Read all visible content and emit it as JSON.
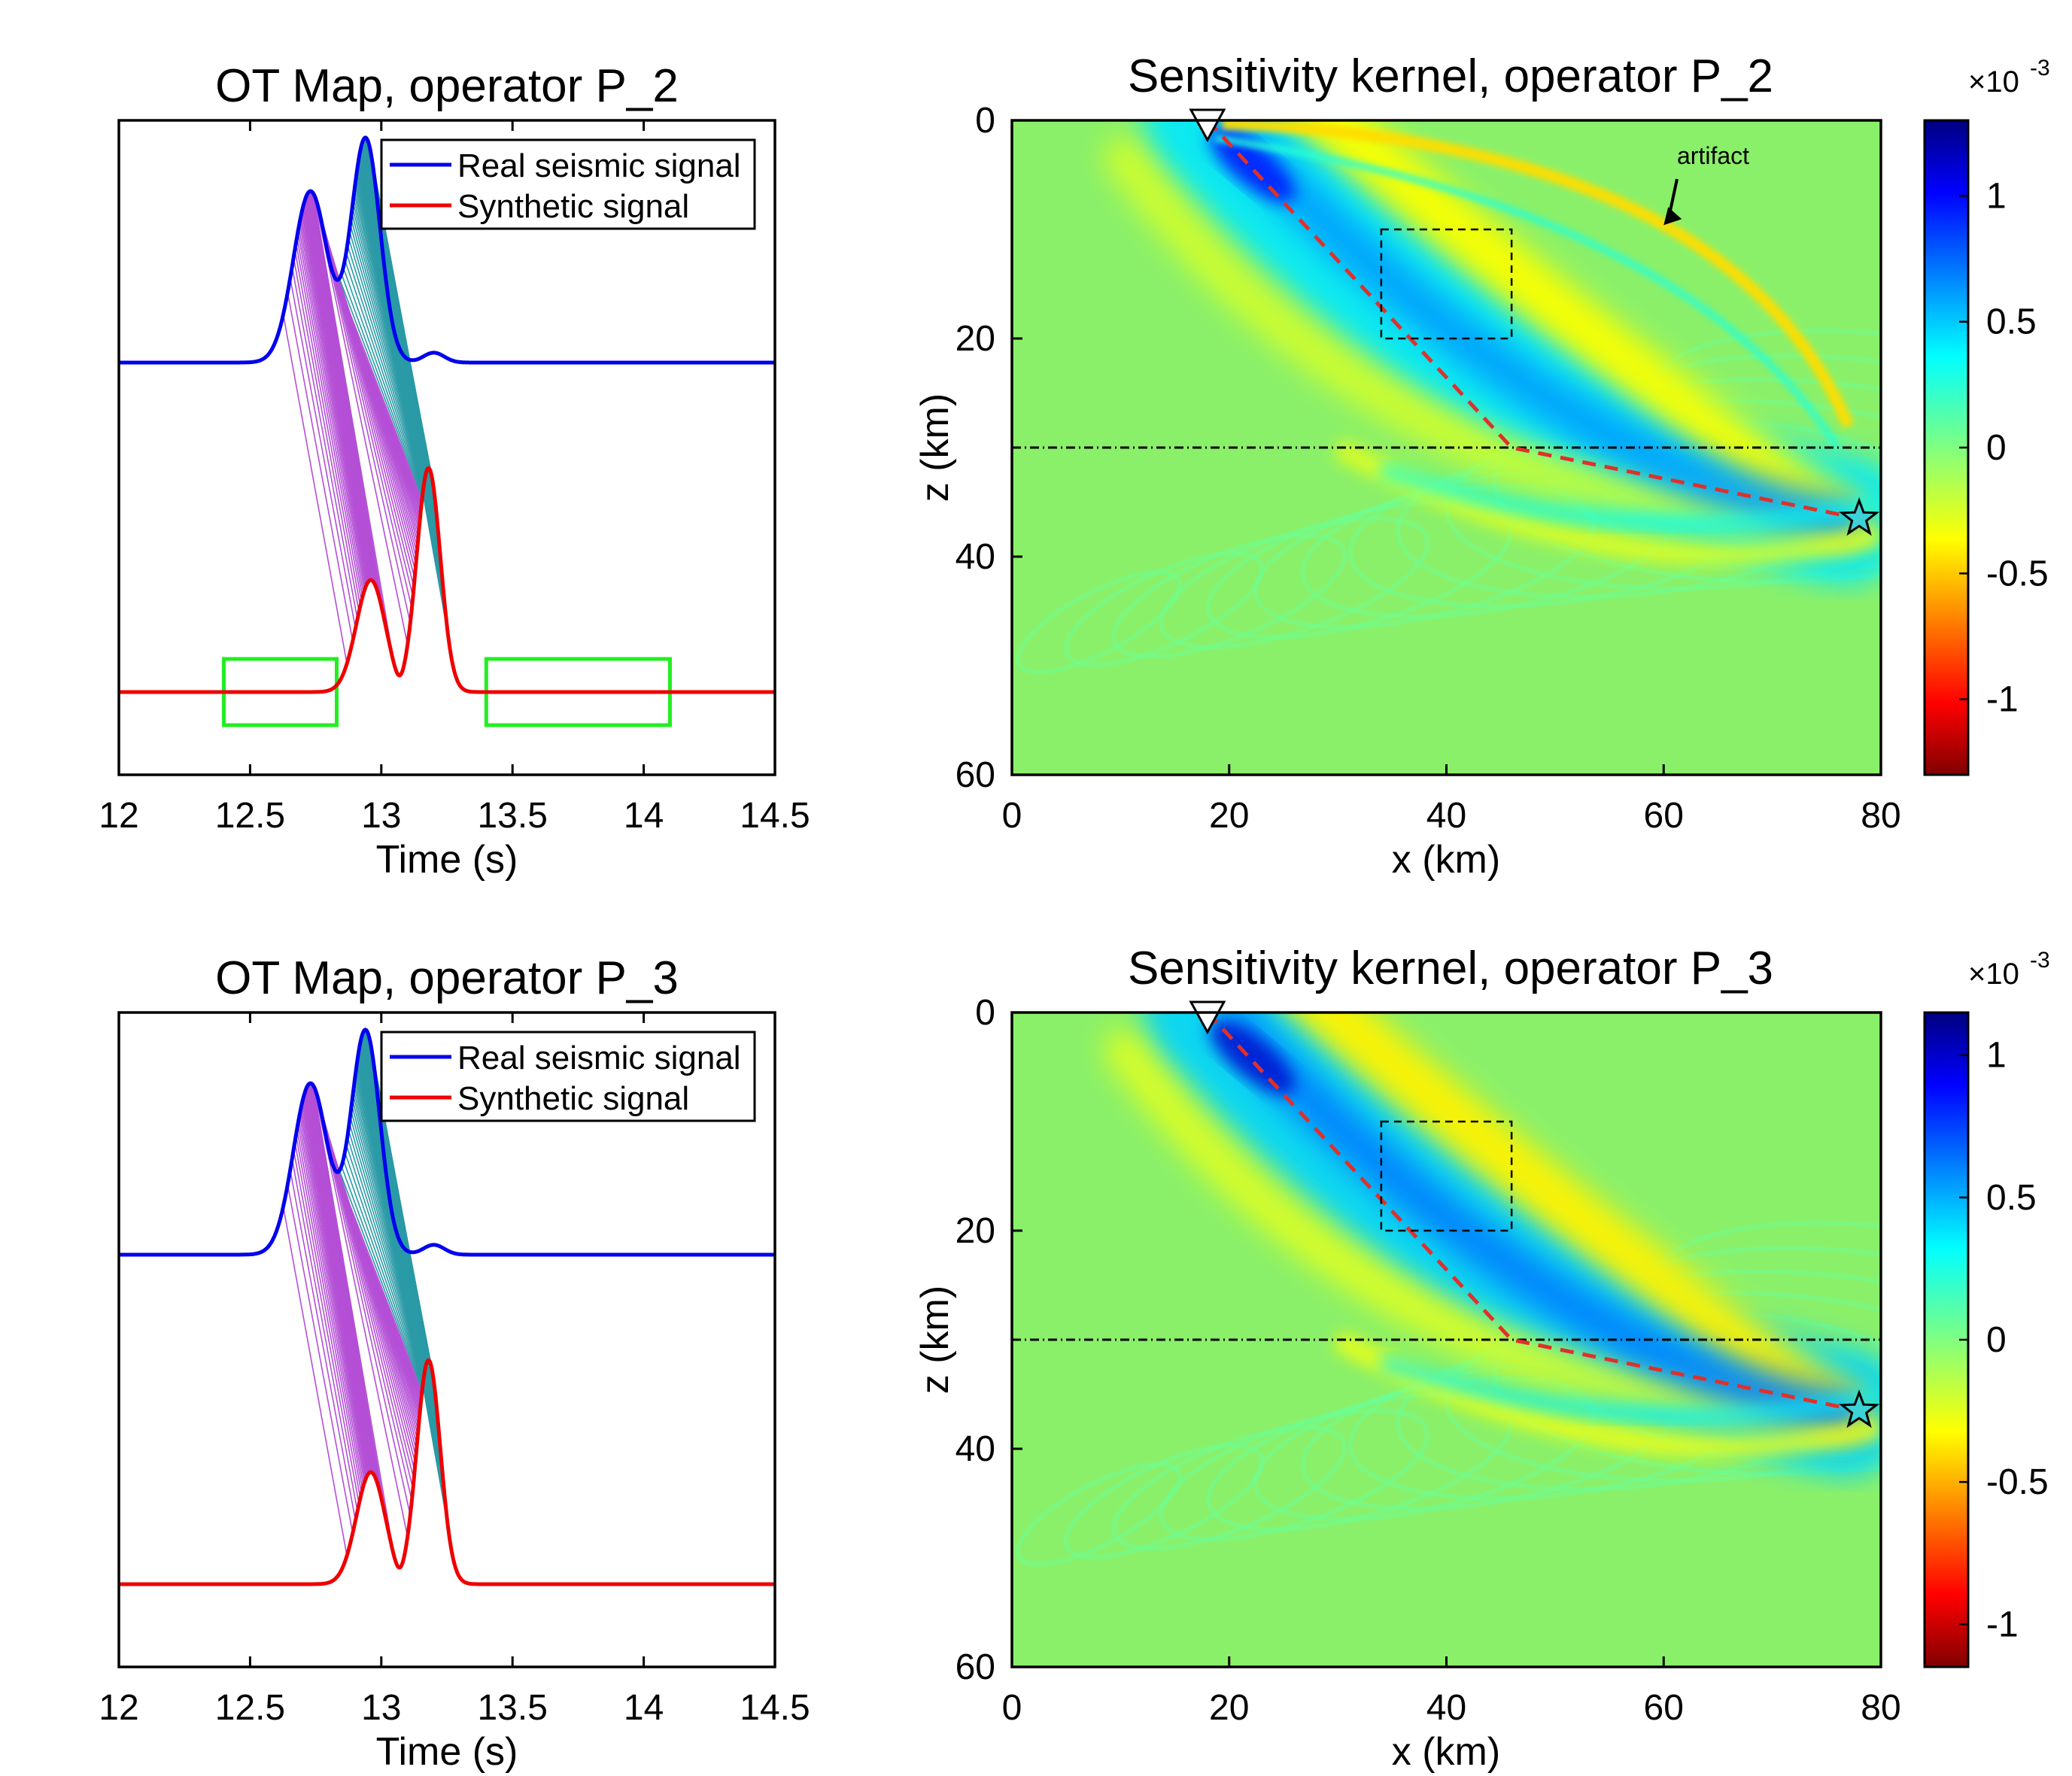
{
  "figure": {
    "panels": [
      "top-left",
      "top-right",
      "bottom-left",
      "bottom-right"
    ]
  },
  "colors": {
    "real_signal": "#0000ee",
    "synthetic_signal": "#ee0000",
    "map_lines_purple": "#b44fd6",
    "map_lines_teal": "#2a9aa6",
    "highlight_box": "#22ee22",
    "path": "#e0302a",
    "field_background": "#8af06a"
  },
  "chart_data": [
    {
      "type": "line",
      "panel": "ot_map_p2",
      "title": "OT Map, operator P_2",
      "xlabel": "Time (s)",
      "ylabel": "",
      "xlim": [
        12,
        14.5
      ],
      "xticks": [
        "12",
        "12.5",
        "13",
        "13.5",
        "14",
        "14.5"
      ],
      "legend": {
        "placement": "top-right",
        "entries": [
          "Real seismic signal",
          "Synthetic signal"
        ]
      },
      "series": [
        {
          "name": "Real seismic signal",
          "offset": 1.0,
          "peaks": [
            {
              "t": 12.73,
              "amp": 0.52,
              "w": 0.065
            },
            {
              "t": 12.94,
              "amp": 0.68,
              "w": 0.055
            },
            {
              "t": 13.2,
              "amp": 0.03,
              "w": 0.04
            }
          ]
        },
        {
          "name": "Synthetic signal",
          "offset": 0.0,
          "peaks": [
            {
              "t": 12.96,
              "amp": 0.34,
              "w": 0.055
            },
            {
              "t": 13.18,
              "amp": 0.68,
              "w": 0.045
            },
            {
              "t": 13.07,
              "amp": -0.03,
              "w": 0.02
            }
          ]
        }
      ],
      "highlight_boxes": [
        [
          12.4,
          12.83
        ],
        [
          13.4,
          14.1
        ]
      ],
      "mapping_extent": "full"
    },
    {
      "type": "heatmap",
      "panel": "kernel_p2",
      "title": "Sensitivity kernel, operator P_2",
      "xlabel": "x (km)",
      "ylabel": "z (km)",
      "xlim": [
        0,
        80
      ],
      "ylim": [
        0,
        60
      ],
      "xticks": [
        "0",
        "20",
        "40",
        "60",
        "80"
      ],
      "yticks": [
        "0",
        "20",
        "40",
        "60"
      ],
      "colorbar": {
        "ticks": [
          "1",
          "0.5",
          "0",
          "-0.5",
          "-1"
        ],
        "values": [
          1,
          0.5,
          0,
          -0.5,
          -1
        ],
        "range": [
          -1.3,
          1.3
        ],
        "multiplier": "×10",
        "exponent": "-3"
      },
      "interface_depth_km": 30,
      "receiver": {
        "x": 18,
        "z": 0
      },
      "source": {
        "x": 78,
        "z": 36.5
      },
      "ray_path": [
        [
          18,
          0
        ],
        [
          46,
          30
        ],
        [
          78,
          36.5
        ]
      ],
      "dashed_box": {
        "x": [
          34,
          46
        ],
        "z": [
          10,
          20
        ]
      },
      "annotation": {
        "text": "artifact",
        "x": 64,
        "z": 4
      },
      "artifact_arc": true
    },
    {
      "type": "line",
      "panel": "ot_map_p3",
      "title": "OT Map, operator P_3",
      "xlabel": "Time (s)",
      "ylabel": "",
      "xlim": [
        12,
        14.5
      ],
      "xticks": [
        "12",
        "12.5",
        "13",
        "13.5",
        "14",
        "14.5"
      ],
      "legend": {
        "placement": "top-right",
        "entries": [
          "Real seismic signal",
          "Synthetic signal"
        ]
      },
      "series": [
        {
          "name": "Real seismic signal",
          "offset": 1.0,
          "peaks": [
            {
              "t": 12.73,
              "amp": 0.52,
              "w": 0.065
            },
            {
              "t": 12.94,
              "amp": 0.68,
              "w": 0.055
            },
            {
              "t": 13.2,
              "amp": 0.03,
              "w": 0.04
            }
          ]
        },
        {
          "name": "Synthetic signal",
          "offset": 0.0,
          "peaks": [
            {
              "t": 12.96,
              "amp": 0.34,
              "w": 0.055
            },
            {
              "t": 13.18,
              "amp": 0.68,
              "w": 0.045
            },
            {
              "t": 13.07,
              "amp": -0.03,
              "w": 0.02
            }
          ]
        }
      ],
      "highlight_boxes": [],
      "mapping_extent": "windowed"
    },
    {
      "type": "heatmap",
      "panel": "kernel_p3",
      "title": "Sensitivity kernel, operator P_3",
      "xlabel": "x (km)",
      "ylabel": "z (km)",
      "xlim": [
        0,
        80
      ],
      "ylim": [
        0,
        60
      ],
      "xticks": [
        "0",
        "20",
        "40",
        "60",
        "80"
      ],
      "yticks": [
        "0",
        "20",
        "40",
        "60"
      ],
      "colorbar": {
        "ticks": [
          "1",
          "0.5",
          "0",
          "-0.5",
          "-1"
        ],
        "values": [
          1,
          0.5,
          0,
          -0.5,
          -1
        ],
        "range": [
          -1.15,
          1.15
        ],
        "multiplier": "×10",
        "exponent": "-3"
      },
      "interface_depth_km": 30,
      "receiver": {
        "x": 18,
        "z": 0
      },
      "source": {
        "x": 78,
        "z": 36.5
      },
      "ray_path": [
        [
          18,
          0
        ],
        [
          46,
          30
        ],
        [
          78,
          36.5
        ]
      ],
      "dashed_box": {
        "x": [
          34,
          46
        ],
        "z": [
          10,
          20
        ]
      },
      "annotation": null,
      "artifact_arc": false
    }
  ]
}
